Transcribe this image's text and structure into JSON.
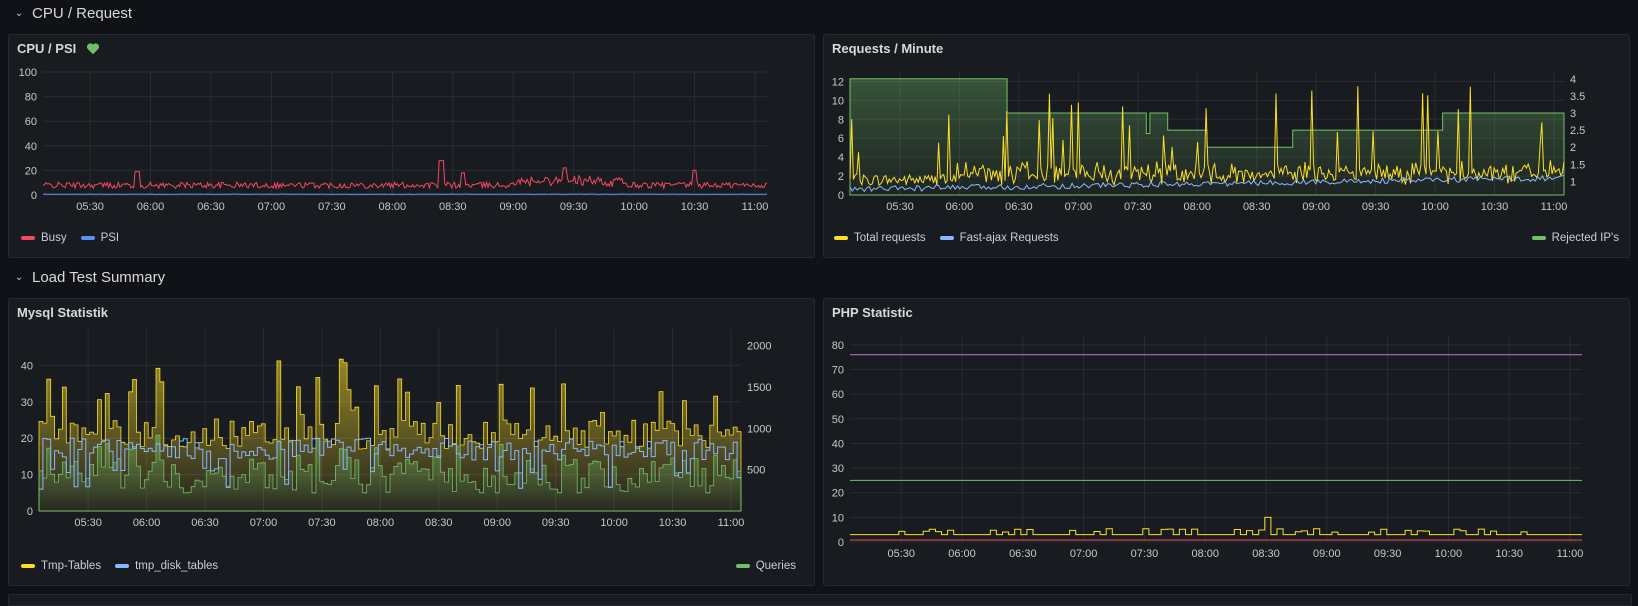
{
  "rows": [
    {
      "title": "CPU / Request"
    },
    {
      "title": "Load Test Summary"
    }
  ],
  "panels": {
    "cpu": {
      "title": "CPU / PSI",
      "icon": "heart-icon",
      "icon_color": "#73bf69",
      "legend": [
        {
          "label": "Busy",
          "color": "#f2495c"
        },
        {
          "label": "PSI",
          "color": "#5794f2"
        }
      ]
    },
    "requests": {
      "title": "Requests / Minute",
      "legend_left": [
        {
          "label": "Total requests",
          "color": "#fade2a"
        },
        {
          "label": "Fast-ajax Requests",
          "color": "#8ab8ff"
        }
      ],
      "legend_right": [
        {
          "label": "Rejected IP's",
          "color": "#73bf69"
        }
      ]
    },
    "mysql": {
      "title": "Mysql Statistik",
      "legend_left": [
        {
          "label": "Tmp-Tables",
          "color": "#fade2a"
        },
        {
          "label": "tmp_disk_tables",
          "color": "#8ab8ff"
        }
      ],
      "legend_right": [
        {
          "label": "Queries",
          "color": "#73bf69"
        }
      ]
    },
    "php": {
      "title": "PHP Statistic"
    }
  },
  "chart_data": [
    {
      "id": "cpu",
      "type": "line",
      "x_ticks": [
        "05:30",
        "06:00",
        "06:30",
        "07:00",
        "07:30",
        "08:00",
        "08:30",
        "09:00",
        "09:30",
        "10:00",
        "10:30",
        "11:00"
      ],
      "y_ticks": [
        0,
        20,
        40,
        60,
        80,
        100
      ],
      "ylim": [
        0,
        100
      ],
      "series": [
        {
          "name": "Busy",
          "color": "#f2495c",
          "baseline": 7,
          "noise": 5,
          "spikes": [
            [
              0.13,
              19
            ],
            [
              0.55,
              28
            ],
            [
              0.58,
              18
            ],
            [
              0.72,
              22
            ],
            [
              0.9,
              20
            ]
          ]
        },
        {
          "name": "PSI",
          "color": "#5794f2",
          "baseline": 0.5,
          "noise": 0.3,
          "spikes": []
        }
      ]
    },
    {
      "id": "requests",
      "type": "line",
      "x_ticks": [
        "05:30",
        "06:00",
        "06:30",
        "07:00",
        "07:30",
        "08:00",
        "08:30",
        "09:00",
        "09:30",
        "10:00",
        "10:30",
        "11:00"
      ],
      "y_ticks": [
        0,
        2,
        4,
        6,
        8,
        10,
        12
      ],
      "ylim": [
        0,
        13
      ],
      "y2_ticks": [
        1,
        1.5,
        2,
        2.5,
        3,
        3.5,
        4
      ],
      "y2lim": [
        0.6,
        4.2
      ],
      "series": [
        {
          "name": "Total requests",
          "color": "#fade2a",
          "axis": "left"
        },
        {
          "name": "Fast-ajax Requests",
          "color": "#8ab8ff",
          "axis": "left"
        },
        {
          "name": "Rejected IP's",
          "color": "#73bf69",
          "axis": "right",
          "steps": [
            [
              0,
              4
            ],
            [
              0.22,
              3
            ],
            [
              0.41,
              3
            ],
            [
              0.415,
              2.4
            ],
            [
              0.42,
              3
            ],
            [
              0.445,
              2.5
            ],
            [
              0.5,
              2
            ],
            [
              0.62,
              2.5
            ],
            [
              0.83,
              3
            ],
            [
              0.92,
              3
            ],
            [
              1,
              3
            ]
          ]
        }
      ]
    },
    {
      "id": "mysql",
      "type": "area",
      "x_ticks": [
        "05:30",
        "06:00",
        "06:30",
        "07:00",
        "07:30",
        "08:00",
        "08:30",
        "09:00",
        "09:30",
        "10:00",
        "10:30",
        "11:00"
      ],
      "y_ticks": [
        0,
        10,
        20,
        30,
        40
      ],
      "ylim": [
        0,
        50
      ],
      "y2_ticks": [
        500,
        1000,
        1500,
        2000
      ],
      "y2lim": [
        0,
        2200
      ],
      "series": [
        {
          "name": "Tmp-Tables",
          "color": "#fade2a",
          "axis": "left"
        },
        {
          "name": "tmp_disk_tables",
          "color": "#8ab8ff",
          "axis": "left"
        },
        {
          "name": "Queries",
          "color": "#73bf69",
          "axis": "right"
        }
      ]
    },
    {
      "id": "php",
      "type": "line",
      "x_ticks": [
        "05:30",
        "06:00",
        "06:30",
        "07:00",
        "07:30",
        "08:00",
        "08:30",
        "09:00",
        "09:30",
        "10:00",
        "10:30",
        "11:00"
      ],
      "y_ticks": [
        0,
        10,
        20,
        30,
        40,
        50,
        60,
        70,
        80
      ],
      "ylim": [
        0,
        84
      ],
      "series": [
        {
          "color": "#b877d9",
          "constant": 76
        },
        {
          "color": "#73bf69",
          "constant": 25
        },
        {
          "color": "#fade2a",
          "baseline": 3,
          "noise": 1.5
        },
        {
          "color": "#f2495c",
          "constant": 0.8
        }
      ]
    }
  ]
}
